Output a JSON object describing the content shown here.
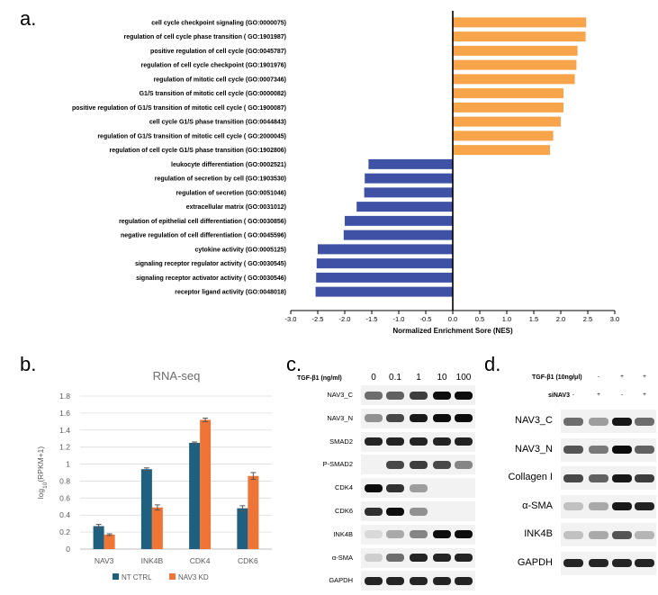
{
  "panels": {
    "a": "a.",
    "b": "b.",
    "c": "c.",
    "d": "d."
  },
  "chart_data": [
    {
      "type": "bar",
      "orientation": "horizontal",
      "categories": [
        "cell cycle checkpoint signaling (GO:0000075)",
        "regulation of cell cycle phase transition ( GO:1901987)",
        "positive regulation of cell cycle (GO:0045787)",
        "regulation of cell cycle checkpoint (GO:1901976)",
        "regulation of mitotic cell cycle (GO:0007346)",
        "G1/S transition of mitotic cell cycle (GO:0000082)",
        "positive regulation of G1/S transition of mitotic cell cycle ( GO:1900087)",
        "cell cycle G1/S phase transition (GO:0044843)",
        "regulation of G1/S transition of mitotic cell cycle ( GO:2000045)",
        "regulation of cell cycle G1/S phase transition (GO:1902806)",
        "leukocyte differentiation (GO:0002521)",
        "regulation of secretion by cell (GO:1903530)",
        "regulation of secretion (GO:0051046)",
        "extracellular matrix (GO:0031012)",
        "regulation of epithelial cell differentiation ( GO:0030856)",
        "negative regulation of cell differentiation ( GO:0045596)",
        "cytokine activity (GO:0005125)",
        "signaling receptor regulator activity ( GO:0030545)",
        "signaling receptor activator activity ( GO:0030546)",
        "receptor ligand activity (GO:0048018)"
      ],
      "values": [
        2.47,
        2.46,
        2.31,
        2.29,
        2.26,
        2.05,
        2.05,
        2.0,
        1.86,
        1.8,
        -1.56,
        -1.63,
        -1.64,
        -1.78,
        -2.0,
        -2.02,
        -2.5,
        -2.52,
        -2.53,
        -2.54
      ],
      "colors": {
        "positive": "#F7A44A",
        "negative": "#3F51A5"
      },
      "xlabel": "Normalized Enrichment Sore (NES)",
      "xlim": [
        -3.0,
        3.0
      ],
      "xticks": [
        "-3.0",
        "-2.5",
        "-2.0",
        "-1.5",
        "-1.0",
        "-0.5",
        "0.0",
        "0.5",
        "1.0",
        "1.5",
        "2.0",
        "2.5",
        "3.0"
      ]
    },
    {
      "type": "bar",
      "title": "RNA-seq",
      "categories": [
        "NAV3",
        "INK4B",
        "CDK4",
        "CDK6"
      ],
      "series": [
        {
          "name": "NT CTRL",
          "values": [
            0.27,
            0.94,
            1.25,
            0.48
          ],
          "errors": [
            0.02,
            0.015,
            0.01,
            0.03
          ],
          "color": "#1F5F7F"
        },
        {
          "name": "NAV3 KD",
          "values": [
            0.17,
            0.49,
            1.52,
            0.86
          ],
          "errors": [
            0.01,
            0.03,
            0.02,
            0.04
          ],
          "color": "#EE7536"
        }
      ],
      "ylabel": "log10(RPKM+1)",
      "ylim": [
        0,
        1.8
      ],
      "yticks": [
        "0",
        "0.2",
        "0.4",
        "0.6",
        "0.8",
        "1",
        "1.2",
        "1.4",
        "1.6",
        "1.8"
      ]
    }
  ],
  "blot_c": {
    "treatment_label": "TGF-β1 (ng/ml)",
    "doses": [
      "0",
      "0.1",
      "1",
      "10",
      "100"
    ],
    "rows": [
      {
        "label": "NAV3_C",
        "intensity": [
          0.55,
          0.6,
          0.75,
          0.95,
          0.95
        ]
      },
      {
        "label": "NAV3_N",
        "intensity": [
          0.4,
          0.7,
          0.9,
          0.95,
          0.95
        ]
      },
      {
        "label": "SMAD2",
        "intensity": [
          0.85,
          0.85,
          0.85,
          0.85,
          0.85
        ]
      },
      {
        "label": "P-SMAD2",
        "intensity": [
          0.0,
          0.7,
          0.75,
          0.7,
          0.45
        ]
      },
      {
        "label": "CDK4",
        "intensity": [
          0.95,
          0.8,
          0.35,
          0.0,
          0.0
        ]
      },
      {
        "label": "CDK6",
        "intensity": [
          0.8,
          0.95,
          0.4,
          0.0,
          0.0
        ]
      },
      {
        "label": "INK4B",
        "intensity": [
          0.1,
          0.3,
          0.45,
          0.95,
          0.95
        ]
      },
      {
        "label": "α-SMA",
        "intensity": [
          0.15,
          0.55,
          0.85,
          0.85,
          0.85
        ]
      },
      {
        "label": "GAPDH",
        "intensity": [
          0.85,
          0.85,
          0.85,
          0.85,
          0.85
        ]
      }
    ]
  },
  "blot_d": {
    "treatments": [
      {
        "label": "TGF-β1 (10ng/μl)",
        "marks": [
          "-",
          "-",
          "+",
          "+"
        ]
      },
      {
        "label": "siNAV3",
        "marks": [
          "-",
          "+",
          "-",
          "+"
        ]
      }
    ],
    "rows": [
      {
        "label": "NAV3_C",
        "intensity": [
          0.55,
          0.35,
          0.9,
          0.55
        ]
      },
      {
        "label": "NAV3_N",
        "intensity": [
          0.65,
          0.5,
          0.95,
          0.6
        ]
      },
      {
        "label": "Collagen I",
        "intensity": [
          0.7,
          0.6,
          0.9,
          0.75
        ]
      },
      {
        "label": "α-SMA",
        "intensity": [
          0.2,
          0.3,
          0.9,
          0.85
        ]
      },
      {
        "label": "INK4B",
        "intensity": [
          0.2,
          0.3,
          0.65,
          0.25
        ]
      },
      {
        "label": "GAPDH",
        "intensity": [
          0.85,
          0.85,
          0.85,
          0.85
        ]
      }
    ]
  }
}
